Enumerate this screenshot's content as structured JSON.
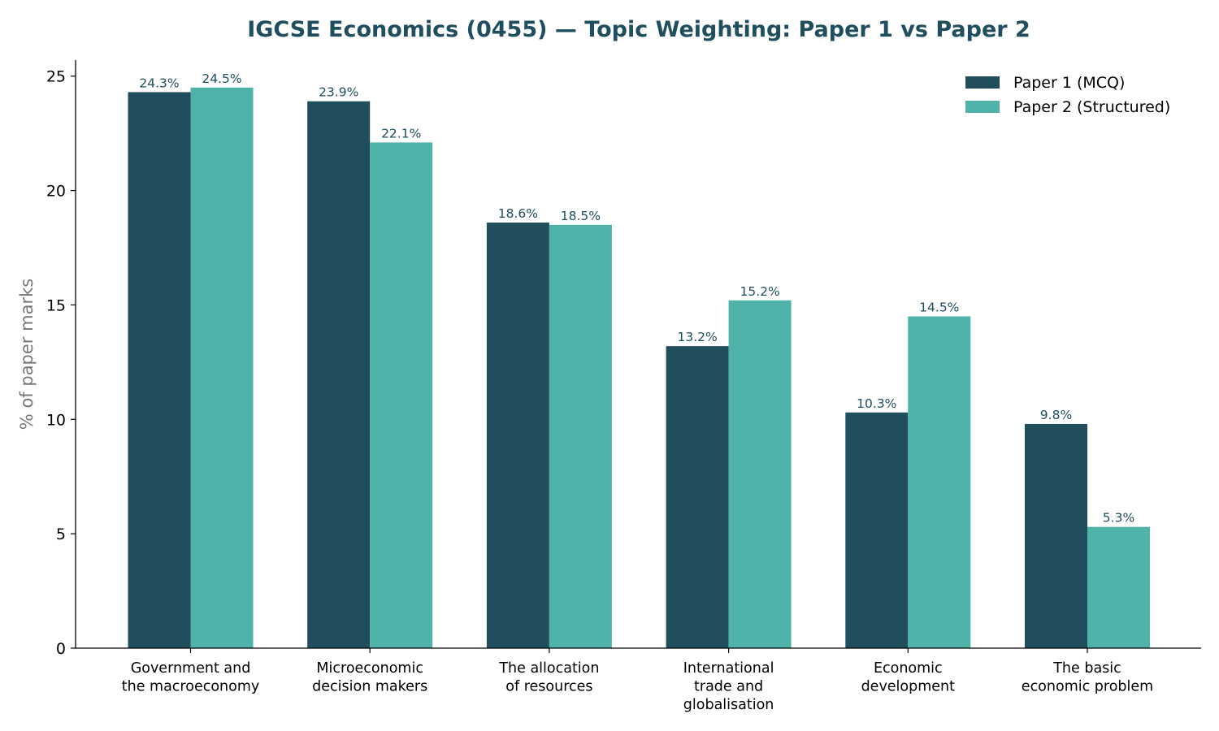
{
  "chart_data": {
    "type": "bar",
    "title": "IGCSE Economics (0455) — Topic Weighting: Paper 1 vs Paper 2",
    "xlabel": "",
    "ylabel": "% of paper marks",
    "ylim": [
      0,
      25.7
    ],
    "yticks": [
      0,
      5,
      10,
      15,
      20,
      25
    ],
    "grid": false,
    "legend_position": "top-right",
    "categories": [
      [
        "Government and",
        "the macroeconomy"
      ],
      [
        "Microeconomic",
        "decision makers"
      ],
      [
        "The allocation",
        "of resources"
      ],
      [
        "International",
        "trade and",
        "globalisation"
      ],
      [
        "Economic",
        "development"
      ],
      [
        "The basic",
        "economic problem"
      ]
    ],
    "series": [
      {
        "name": "Paper 1 (MCQ)",
        "color": "#214e5c",
        "values": [
          24.3,
          23.9,
          18.6,
          13.2,
          10.3,
          9.8
        ],
        "labels": [
          "24.3%",
          "23.9%",
          "18.6%",
          "13.2%",
          "10.3%",
          "9.8%"
        ]
      },
      {
        "name": "Paper 2 (Structured)",
        "color": "#4fb3a9",
        "values": [
          24.5,
          22.1,
          18.5,
          15.2,
          14.5,
          5.3
        ],
        "labels": [
          "24.5%",
          "22.1%",
          "18.5%",
          "15.2%",
          "14.5%",
          "5.3%"
        ]
      }
    ],
    "title_color": "#1f4e5f",
    "data_label_color": "#1f4e5f"
  }
}
